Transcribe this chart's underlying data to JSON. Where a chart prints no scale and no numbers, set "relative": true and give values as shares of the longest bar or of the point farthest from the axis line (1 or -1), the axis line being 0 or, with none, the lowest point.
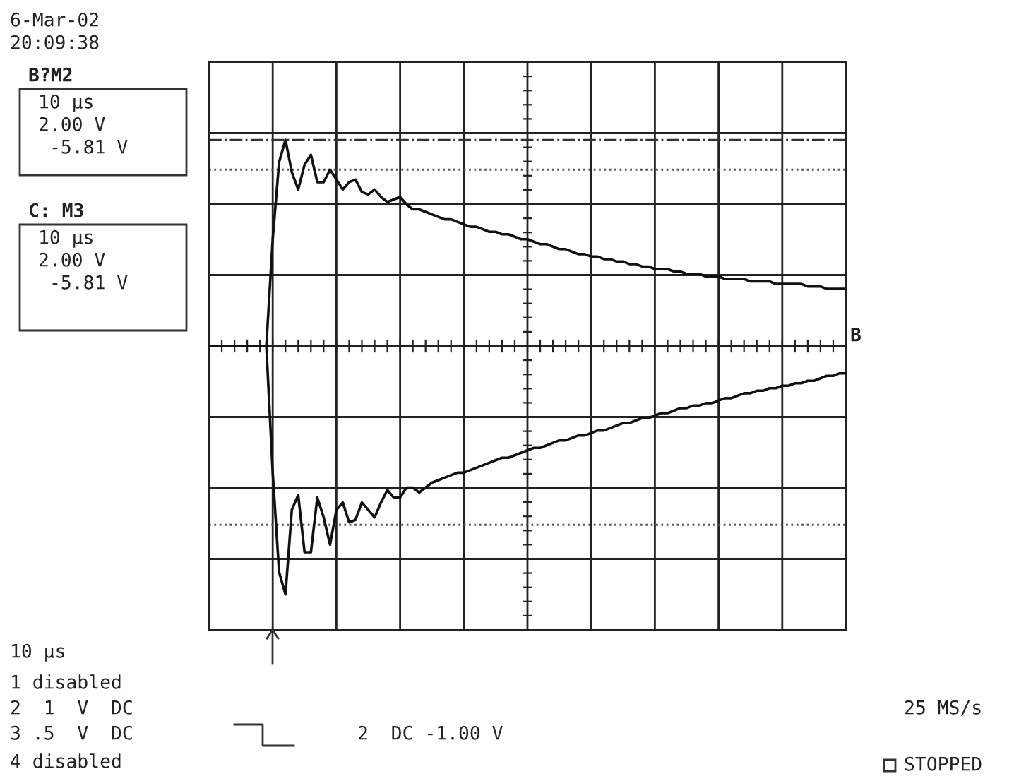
{
  "chart_data": {
    "type": "line",
    "relative": true,
    "grid": true,
    "line_style": "solid",
    "marker": "none",
    "categories": [
      null,
      null,
      null,
      null,
      null,
      null,
      null,
      null,
      null,
      null,
      null,
      null,
      null,
      null,
      null,
      null,
      null,
      null,
      null,
      null,
      null,
      null,
      null,
      null,
      null,
      null,
      null,
      null,
      null,
      null,
      null,
      null,
      null,
      null,
      null,
      null,
      null,
      null,
      null,
      null,
      null,
      null,
      null,
      null,
      null,
      null,
      null,
      null,
      null,
      null,
      null,
      null,
      null,
      null,
      null,
      null,
      null,
      null,
      null,
      null,
      null,
      null,
      null,
      null,
      null,
      null,
      null,
      null,
      null,
      null,
      null,
      null,
      null,
      null,
      null,
      null,
      null,
      null,
      null,
      null,
      null,
      null,
      null,
      null,
      null,
      null,
      null,
      null,
      null,
      null,
      null,
      null,
      null,
      null,
      null,
      null,
      null,
      null,
      null,
      null,
      null
    ],
    "series": [
      {
        "color": "#111111",
        "values": [
          0,
          0,
          0,
          0,
          0,
          0,
          0,
          0,
          0,
          0,
          0.43,
          0.74,
          0.83,
          0.7,
          0.63,
          0.73,
          0.77,
          0.66,
          0.66,
          0.71,
          0.67,
          0.63,
          0.66,
          0.67,
          0.62,
          0.61,
          0.63,
          0.6,
          0.58,
          0.59,
          0.6,
          0.57,
          0.55,
          0.55,
          0.54,
          0.53,
          0.52,
          0.51,
          0.51,
          0.5,
          0.49,
          0.48,
          0.48,
          0.47,
          0.46,
          0.46,
          0.45,
          0.45,
          0.44,
          0.43,
          0.43,
          0.42,
          0.41,
          0.41,
          0.4,
          0.39,
          0.39,
          0.38,
          0.37,
          0.37,
          0.36,
          0.36,
          0.35,
          0.35,
          0.34,
          0.34,
          0.33,
          0.33,
          0.32,
          0.32,
          0.31,
          0.31,
          0.31,
          0.3,
          0.3,
          0.29,
          0.29,
          0.29,
          0.28,
          0.28,
          0.28,
          0.27,
          0.27,
          0.27,
          0.27,
          0.26,
          0.26,
          0.26,
          0.26,
          0.25,
          0.25,
          0.25,
          0.25,
          0.25,
          0.24,
          0.24,
          0.24,
          0.23,
          0.23,
          0.23,
          0.23
        ]
      },
      {
        "color": "#111111",
        "values": [
          0,
          0,
          0,
          0,
          0,
          0,
          0,
          0,
          0,
          0,
          -0.51,
          -0.91,
          -1,
          -0.66,
          -0.6,
          -0.83,
          -0.83,
          -0.61,
          -0.69,
          -0.8,
          -0.66,
          -0.63,
          -0.71,
          -0.7,
          -0.63,
          -0.66,
          -0.69,
          -0.63,
          -0.58,
          -0.61,
          -0.61,
          -0.57,
          -0.57,
          -0.59,
          -0.57,
          -0.55,
          -0.54,
          -0.53,
          -0.52,
          -0.51,
          -0.51,
          -0.5,
          -0.49,
          -0.48,
          -0.47,
          -0.46,
          -0.45,
          -0.45,
          -0.44,
          -0.43,
          -0.42,
          -0.41,
          -0.41,
          -0.4,
          -0.39,
          -0.38,
          -0.38,
          -0.37,
          -0.36,
          -0.36,
          -0.35,
          -0.34,
          -0.34,
          -0.33,
          -0.32,
          -0.31,
          -0.31,
          -0.3,
          -0.29,
          -0.29,
          -0.28,
          -0.27,
          -0.27,
          -0.26,
          -0.25,
          -0.25,
          -0.24,
          -0.24,
          -0.23,
          -0.23,
          -0.22,
          -0.21,
          -0.21,
          -0.2,
          -0.19,
          -0.19,
          -0.18,
          -0.18,
          -0.17,
          -0.17,
          -0.16,
          -0.16,
          -0.15,
          -0.15,
          -0.14,
          -0.14,
          -0.13,
          -0.12,
          -0.12,
          -0.11,
          -0.11
        ]
      }
    ],
    "ref_lines": [
      {
        "axis": "y",
        "value": 0.83,
        "line_style": "dashdot",
        "color": "#333333"
      },
      {
        "axis": "y",
        "value": 0.71,
        "line_style": "dotted",
        "color": "#555555"
      },
      {
        "axis": "y",
        "value": -0.72,
        "line_style": "dotted",
        "color": "#555555"
      }
    ],
    "annotations": [
      "6-Mar-02",
      "20:09:38",
      "B?M2",
      "10 μs",
      "2.00 V",
      "-5.81 V",
      "C: M3",
      "10 μs",
      "2.00 V",
      "-5.81 V",
      "10 μs",
      "1 disabled",
      "2  1  V  DC",
      "3 .5  V  DC",
      "4 disabled",
      "2  DC -1.00 V",
      "25 MS/s",
      "STOPPED",
      "B"
    ]
  }
}
